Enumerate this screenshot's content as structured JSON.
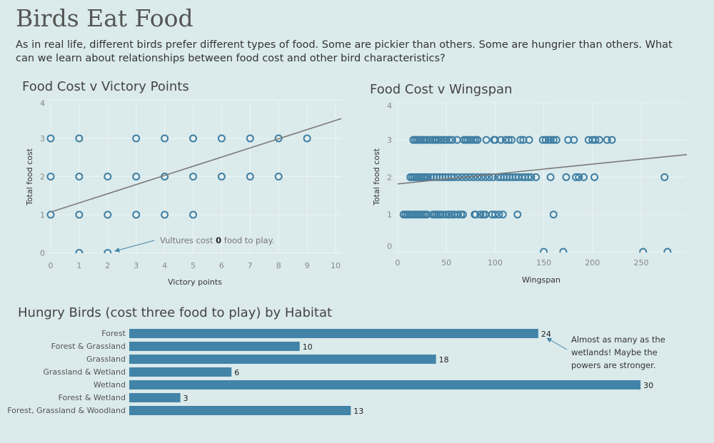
{
  "title": "Birds Eat Food",
  "description": "As in real life, different birds prefer different types of food. Some are pickier than others. Some are hungrier than others. What can we learn about relationships between food cost and other bird characteristics?",
  "colors": {
    "point": "#3e7ea3",
    "bar": "#4284a8",
    "trend": "#7a7a7a",
    "background": "#dbeaeb"
  },
  "chart_data": [
    {
      "type": "scatter",
      "title": "Food Cost v Victory Points",
      "xlabel": "Victory points",
      "ylabel": "Total food cost",
      "xlim": [
        0,
        10
      ],
      "ylim": [
        0,
        4
      ],
      "xticks": [
        "0",
        "1",
        "2",
        "3",
        "4",
        "5",
        "6",
        "7",
        "8",
        "9",
        "10"
      ],
      "yticks": [
        "0",
        "1",
        "2",
        "3",
        "4"
      ],
      "points": [
        [
          0,
          1
        ],
        [
          0,
          2
        ],
        [
          0,
          3
        ],
        [
          1,
          0
        ],
        [
          1,
          1
        ],
        [
          1,
          2
        ],
        [
          1,
          3
        ],
        [
          2,
          0
        ],
        [
          2,
          1
        ],
        [
          2,
          2
        ],
        [
          3,
          1
        ],
        [
          3,
          2
        ],
        [
          3,
          3
        ],
        [
          4,
          1
        ],
        [
          4,
          2
        ],
        [
          4,
          3
        ],
        [
          5,
          1
        ],
        [
          5,
          2
        ],
        [
          5,
          3
        ],
        [
          6,
          2
        ],
        [
          6,
          3
        ],
        [
          7,
          2
        ],
        [
          7,
          3
        ],
        [
          8,
          2
        ],
        [
          8,
          3
        ],
        [
          9,
          3
        ]
      ],
      "trend": {
        "intercept": 1.07,
        "slope": 0.24
      },
      "annotation": {
        "pre": "Vultures cost ",
        "bold": "0",
        "post": " food to play."
      }
    },
    {
      "type": "scatter",
      "title": "Food Cost v Wingspan",
      "xlabel": "Wingspan",
      "ylabel": "Total food cost",
      "xlim": [
        0,
        295
      ],
      "ylim": [
        0,
        4
      ],
      "xticks": [
        "0",
        "50",
        "100",
        "150",
        "200",
        "250"
      ],
      "yticks": [
        "0",
        "1",
        "2",
        "3",
        "4"
      ],
      "series_by_cost": {
        "3": [
          16,
          18,
          20,
          22,
          24,
          26,
          28,
          30,
          33,
          36,
          38,
          40,
          42,
          45,
          48,
          50,
          53,
          56,
          61,
          68,
          70,
          72,
          75,
          78,
          80,
          82,
          91,
          99,
          100,
          106,
          111,
          114,
          117,
          126,
          129,
          135,
          149,
          152,
          155,
          157,
          160,
          163,
          175,
          181,
          196,
          200,
          203,
          207,
          215,
          220
        ],
        "2": [
          13,
          15,
          17,
          19,
          21,
          23,
          25,
          27,
          29,
          31,
          34,
          37,
          40,
          43,
          46,
          49,
          52,
          55,
          58,
          62,
          66,
          70,
          74,
          78,
          82,
          86,
          90,
          94,
          98,
          103,
          106,
          109,
          112,
          115,
          118,
          121,
          124,
          128,
          131,
          134,
          137,
          142,
          157,
          173,
          183,
          186,
          191,
          202,
          274
        ],
        "1": [
          6,
          8,
          10,
          12,
          14,
          16,
          18,
          20,
          22,
          24,
          26,
          28,
          30,
          36,
          38,
          40,
          42,
          44,
          46,
          50,
          53,
          55,
          58,
          62,
          65,
          67,
          79,
          80,
          85,
          88,
          90,
          97,
          100,
          104,
          108,
          123,
          160
        ],
        "0": [
          150,
          170,
          252,
          277
        ]
      },
      "trend": {
        "intercept": 1.82,
        "slope": 0.00265
      }
    },
    {
      "type": "bar",
      "title": "Hungry Birds (cost three food to play) by Habitat",
      "categories": [
        "Forest",
        "Forest & Grassland",
        "Grassland",
        "Grassland & Wetland",
        "Wetland",
        "Forest & Wetland",
        "Forest, Grassland & Woodland"
      ],
      "values": [
        24,
        10,
        18,
        6,
        30,
        3,
        13
      ],
      "annotation": [
        "Almost as many as the",
        "wetlands! Maybe the",
        "powers are stronger."
      ]
    }
  ]
}
